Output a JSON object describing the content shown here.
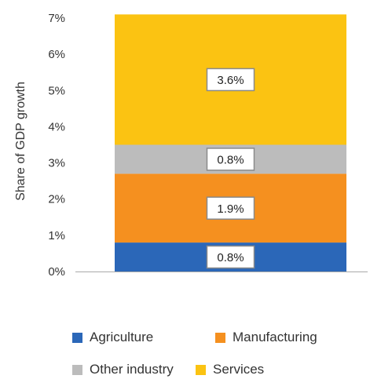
{
  "chart_data": {
    "type": "bar",
    "stacked": true,
    "categories": [
      ""
    ],
    "series": [
      {
        "name": "Agriculture",
        "values": [
          0.8
        ],
        "label": "0.8%",
        "color": "#2b67b8"
      },
      {
        "name": "Manufacturing",
        "values": [
          1.9
        ],
        "label": "1.9%",
        "color": "#f5901f"
      },
      {
        "name": "Other industry",
        "values": [
          0.8
        ],
        "label": "0.8%",
        "color": "#bcbcbc"
      },
      {
        "name": "Services",
        "values": [
          3.6
        ],
        "label": "3.6%",
        "color": "#fbc312"
      }
    ],
    "ylabel": "Share of GDP growth",
    "xlabel": "",
    "title": "",
    "ylim": [
      0,
      7
    ],
    "yticks": [
      0,
      1,
      2,
      3,
      4,
      5,
      6,
      7
    ],
    "ytick_labels": [
      "0%",
      "1%",
      "2%",
      "3%",
      "4%",
      "5%",
      "6%",
      "7%"
    ],
    "grid": false,
    "legend_position": "bottom"
  }
}
